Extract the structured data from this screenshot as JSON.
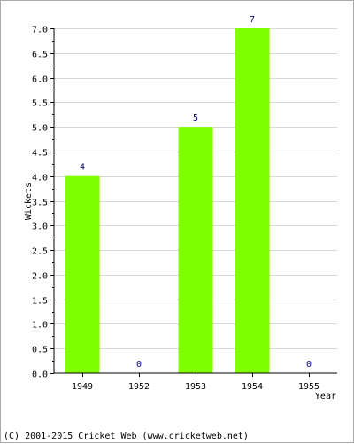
{
  "chart_data": {
    "type": "bar",
    "categories": [
      "1949",
      "1952",
      "1953",
      "1954",
      "1955"
    ],
    "values": [
      4,
      0,
      5,
      7,
      0
    ],
    "data_labels": [
      "4",
      "0",
      "5",
      "7",
      "0"
    ],
    "ylabel": "Wickets",
    "xlabel": "Year",
    "ylim": [
      0,
      7
    ],
    "yticks": [
      "0.0",
      "0.5",
      "1.0",
      "1.5",
      "2.0",
      "2.5",
      "3.0",
      "3.5",
      "4.0",
      "4.5",
      "5.0",
      "5.5",
      "6.0",
      "6.5",
      "7.0"
    ],
    "grid": "horizontal",
    "bar_color": "#80ff00",
    "label_color": "#000080"
  },
  "footer": {
    "copyright": "(C) 2001-2015 Cricket Web (www.cricketweb.net)"
  }
}
